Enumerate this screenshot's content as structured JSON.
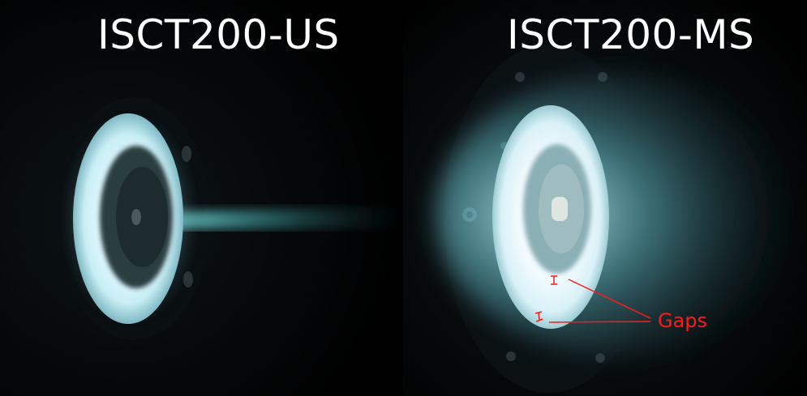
{
  "panels": {
    "left": {
      "title": "ISCT200-US"
    },
    "right": {
      "title": "ISCT200-MS",
      "annotation": "Gaps"
    }
  },
  "colors": {
    "background": "#000000",
    "plasma_glow": "#dff6ff",
    "plume": "#4fb3b3",
    "annotation": "#ff1a1a"
  }
}
